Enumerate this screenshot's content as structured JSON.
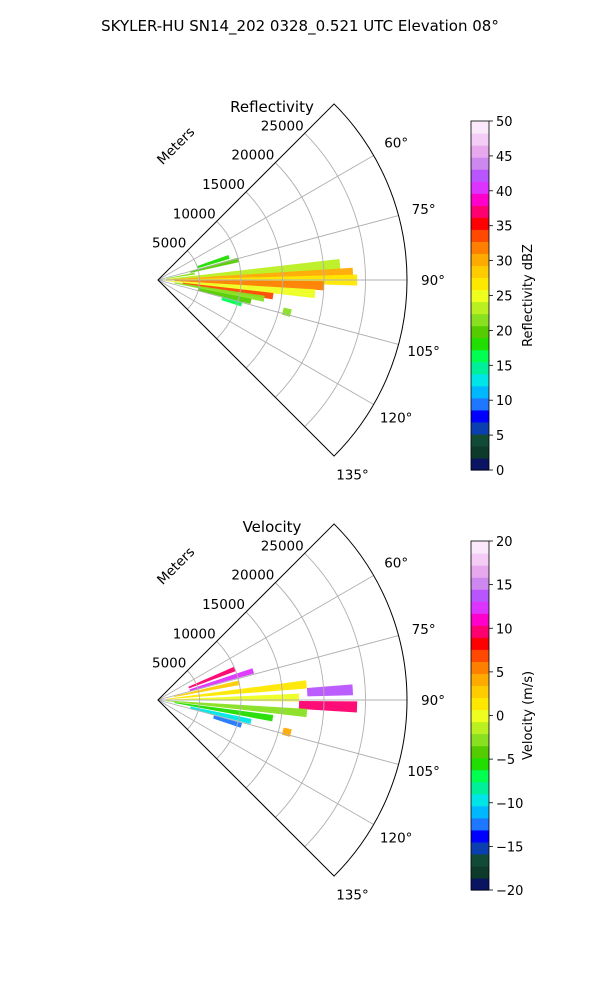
{
  "figure": {
    "suptitle": "SKYLER-HU  SN14_202  0328_0.521 UTC Elevation 08°"
  },
  "chart_data": [
    {
      "type": "heatmap",
      "projection": "polar-sector",
      "title": "Reflectivity",
      "range_axis": {
        "label": "Meters",
        "ticks": [
          5000,
          10000,
          15000,
          20000,
          25000
        ],
        "tick_labels": [
          "5000",
          "10000",
          "15000",
          "20000",
          "25000"
        ],
        "max": 30000
      },
      "azimuth_axis": {
        "min_deg": 45,
        "max_deg": 135,
        "ticks": [
          60,
          75,
          90,
          105,
          120,
          135
        ],
        "tick_labels": [
          "60°",
          "75°",
          "90°",
          "105°",
          "120°",
          "135°"
        ]
      },
      "grid": true,
      "colorbar": {
        "label": "Reflectivity dBZ",
        "min": 0,
        "max": 50,
        "ticks": [
          0,
          5,
          10,
          15,
          20,
          25,
          30,
          35,
          40,
          45,
          50
        ],
        "tick_labels": [
          "0",
          "5",
          "10",
          "15",
          "20",
          "25",
          "30",
          "35",
          "40",
          "45",
          "50"
        ],
        "colors": [
          "#0a1460",
          "#0d3a2a",
          "#114a36",
          "#0b3fb0",
          "#0000ff",
          "#1e78ff",
          "#00b8ff",
          "#00e5e5",
          "#00ef9a",
          "#00ff50",
          "#22dd00",
          "#55cc00",
          "#88e020",
          "#bbf020",
          "#eeff20",
          "#ffe800",
          "#ffcc00",
          "#ffaa00",
          "#ff8000",
          "#ff4800",
          "#ff0000",
          "#ff0070",
          "#ff00cc",
          "#dd33ff",
          "#b855ff",
          "#cc88ee",
          "#e8a8ee",
          "#f5ccf5",
          "#fbe8fb"
        ]
      },
      "echo_cells": [
        {
          "az": 80,
          "r0": 1000,
          "r1": 4500,
          "value": 22
        },
        {
          "az": 85,
          "r0": 1000,
          "r1": 22000,
          "value": 24
        },
        {
          "az": 88,
          "r0": 1000,
          "r1": 23500,
          "value": 30
        },
        {
          "az": 90,
          "r0": 1000,
          "r1": 24000,
          "value": 27
        },
        {
          "az": 92,
          "r0": 2000,
          "r1": 20000,
          "value": 32
        },
        {
          "az": 95,
          "r0": 1000,
          "r1": 19000,
          "value": 25
        },
        {
          "az": 98,
          "r0": 3000,
          "r1": 14000,
          "value": 33
        },
        {
          "az": 100,
          "r0": 2000,
          "r1": 13000,
          "value": 21
        },
        {
          "az": 103,
          "r0": 5000,
          "r1": 11500,
          "value": 19
        },
        {
          "az": 106,
          "r0": 8000,
          "r1": 10500,
          "value": 16
        },
        {
          "az": 76,
          "r0": 4000,
          "r1": 10000,
          "value": 20
        },
        {
          "az": 72,
          "r0": 5000,
          "r1": 9000,
          "value": 18
        },
        {
          "az": 104,
          "r0": 15500,
          "r1": 16500,
          "value": 22
        }
      ]
    },
    {
      "type": "heatmap",
      "projection": "polar-sector",
      "title": "Velocity",
      "range_axis": {
        "label": "Meters",
        "ticks": [
          5000,
          10000,
          15000,
          20000,
          25000
        ],
        "tick_labels": [
          "5000",
          "10000",
          "15000",
          "20000",
          "25000"
        ],
        "max": 30000
      },
      "azimuth_axis": {
        "min_deg": 45,
        "max_deg": 135,
        "ticks": [
          60,
          75,
          90,
          105,
          120,
          135
        ],
        "tick_labels": [
          "60°",
          "75°",
          "90°",
          "105°",
          "120°",
          "135°"
        ]
      },
      "grid": true,
      "colorbar": {
        "label": "Velocity (m/s)",
        "min": -20,
        "max": 20,
        "ticks": [
          -20,
          -15,
          -10,
          -5,
          0,
          5,
          10,
          15,
          20
        ],
        "tick_labels": [
          "−20",
          "−15",
          "−10",
          "−5",
          "0",
          "5",
          "10",
          "15",
          "20"
        ],
        "colors": [
          "#0a1460",
          "#0d3a2a",
          "#114a36",
          "#0b3fb0",
          "#0000ff",
          "#1e78ff",
          "#00b8ff",
          "#00e5e5",
          "#00ef9a",
          "#00ff50",
          "#22dd00",
          "#55cc00",
          "#88e020",
          "#bbf020",
          "#eeff20",
          "#ffe800",
          "#ffcc00",
          "#ffaa00",
          "#ff8000",
          "#ff4800",
          "#ff0000",
          "#ff0070",
          "#ff00cc",
          "#dd33ff",
          "#b855ff",
          "#cc88ee",
          "#e8a8ee",
          "#f5ccf5",
          "#fbe8fb"
        ]
      },
      "echo_cells": [
        {
          "az": 68,
          "r0": 4000,
          "r1": 10000,
          "value": 10
        },
        {
          "az": 73,
          "r0": 4000,
          "r1": 12000,
          "value": 12
        },
        {
          "az": 78,
          "r0": 2000,
          "r1": 10000,
          "value": 3
        },
        {
          "az": 84,
          "r0": 1000,
          "r1": 18000,
          "value": 1
        },
        {
          "az": 87,
          "r0": 18000,
          "r1": 23500,
          "value": 14
        },
        {
          "az": 89,
          "r0": 1000,
          "r1": 17000,
          "value": 0
        },
        {
          "az": 92,
          "r0": 17000,
          "r1": 24000,
          "value": 10
        },
        {
          "az": 95,
          "r0": 1000,
          "r1": 18000,
          "value": -3
        },
        {
          "az": 99,
          "r0": 2000,
          "r1": 14000,
          "value": -6
        },
        {
          "az": 103,
          "r0": 4000,
          "r1": 11500,
          "value": -9
        },
        {
          "az": 107,
          "r0": 7000,
          "r1": 10500,
          "value": -12
        },
        {
          "az": 104,
          "r0": 15500,
          "r1": 16500,
          "value": 4
        }
      ]
    }
  ]
}
